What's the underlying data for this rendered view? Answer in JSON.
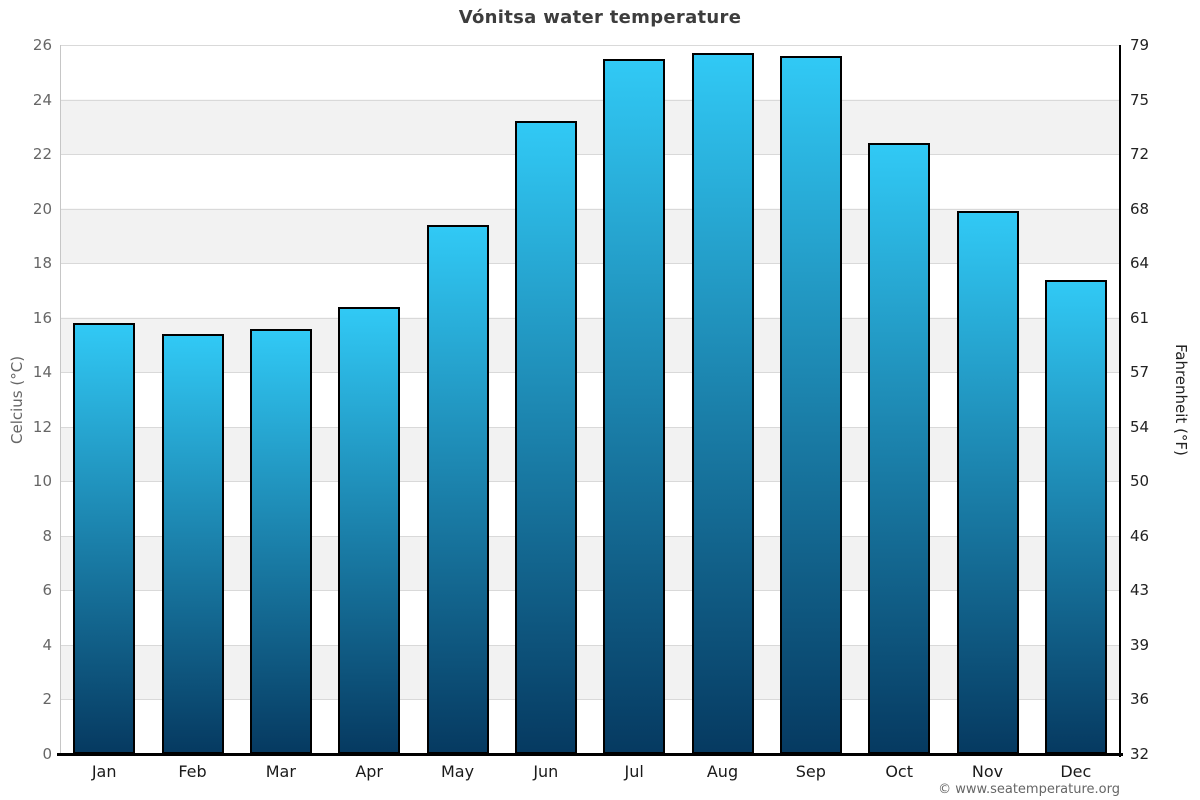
{
  "title": "Vónitsa water temperature",
  "credit": "© www.seatemperature.org",
  "chart_data": {
    "type": "bar",
    "title": "Vónitsa water temperature",
    "categories": [
      "Jan",
      "Feb",
      "Mar",
      "Apr",
      "May",
      "Jun",
      "Jul",
      "Aug",
      "Sep",
      "Oct",
      "Nov",
      "Dec"
    ],
    "values": [
      15.8,
      15.4,
      15.6,
      16.4,
      19.4,
      23.2,
      25.5,
      25.7,
      25.6,
      22.4,
      19.9,
      17.4
    ],
    "series_name": "Water temperature (°C)",
    "ylabel_left": "Celcius (°C)",
    "ylabel_right": "Fahrenheit (°F)",
    "ylim_celsius": [
      0,
      26
    ],
    "ylim_fahrenheit": [
      32,
      79
    ],
    "celsius_ticks": [
      26,
      24,
      22,
      20,
      18,
      16,
      14,
      12,
      10,
      8,
      6,
      4,
      2,
      0
    ],
    "fahrenheit_tick_labels": [
      "79",
      "75",
      "72",
      "68",
      "64",
      "61",
      "57",
      "54",
      "50",
      "46",
      "43",
      "39",
      "36",
      "32"
    ],
    "legend": "none",
    "grid": "horizontal gridlines with alternating white/gray 2-degree bands",
    "colors": {
      "bar_gradient_top": "#31c9f5",
      "bar_gradient_bottom": "#063a61",
      "bar_border": "#000000",
      "band_gray": "#f2f2f2",
      "gridline": "#d9d9d9",
      "left_axis_line": "#c6c6c6",
      "dark_axis_line": "#000000",
      "title_color": "#3d3d3d",
      "left_tick_color": "#666666",
      "right_tick_color": "#222222",
      "credit_color": "#666666"
    }
  }
}
